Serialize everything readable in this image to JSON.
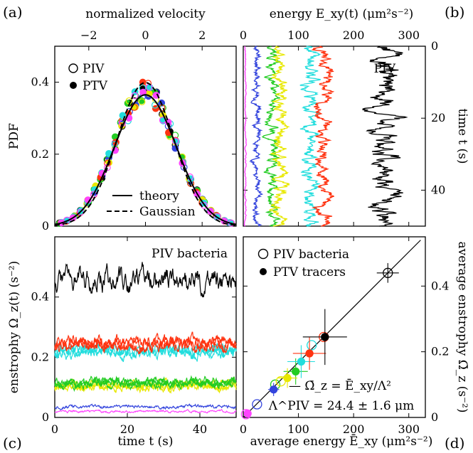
{
  "panels": {
    "a": "(a)",
    "b": "(b)",
    "c": "(c)",
    "d": "(d)"
  },
  "chart_data": [
    {
      "id": "a",
      "type": "scatter",
      "xlabel": "normalized velocity",
      "ylabel": "PDF",
      "xlim": [
        -3.2,
        3.2
      ],
      "ylim": [
        0,
        0.5
      ],
      "xticks": [
        -2,
        0,
        2
      ],
      "yticks": [
        0,
        0.2,
        0.4
      ],
      "legend": [
        {
          "label": "PIV",
          "marker": "open-circle"
        },
        {
          "label": "PTV",
          "marker": "filled-circle"
        },
        {
          "label": "theory",
          "line": "solid"
        },
        {
          "label": "Gaussian",
          "line": "dashed"
        }
      ],
      "colors": [
        "#000000",
        "#3344dd",
        "#22cc22",
        "#e8e800",
        "#ff3311",
        "#22dddd",
        "#ff44ff"
      ],
      "series": [
        {
          "name": "theory",
          "curve": "pdf",
          "sigma": 1.09,
          "peak": 0.365
        },
        {
          "name": "Gaussian",
          "curve": "gauss",
          "sigma": 1.0,
          "peak": 0.399
        }
      ]
    },
    {
      "id": "b",
      "type": "line",
      "xlabel": "energy  E_xy(t)  (μm²s⁻²)",
      "ylabel": "time  t  (s)",
      "annotation": "PIV",
      "xlim": [
        0,
        330
      ],
      "ylim": [
        0,
        50
      ],
      "xticks": [
        0,
        100,
        200,
        300
      ],
      "yticks": [
        0,
        20,
        40
      ],
      "series": [
        {
          "color": "#ff44ff",
          "mean": 4,
          "amp": 1.2
        },
        {
          "color": "#3344dd",
          "mean": 25,
          "amp": 6
        },
        {
          "color": "#22cc22",
          "mean": 55,
          "amp": 10
        },
        {
          "color": "#e8e800",
          "mean": 68,
          "amp": 12
        },
        {
          "color": "#22dddd",
          "mean": 122,
          "amp": 14
        },
        {
          "color": "#ff3311",
          "mean": 146,
          "amp": 14
        },
        {
          "color": "#000000",
          "mean": 262,
          "amp": 25
        }
      ]
    },
    {
      "id": "c",
      "type": "line",
      "xlabel": "time  t  (s)",
      "ylabel": "enstrophy  Ω_z(t)  (s⁻²)",
      "annotation": "PIV bacteria",
      "xlim": [
        0,
        50
      ],
      "ylim": [
        0,
        0.6
      ],
      "xticks": [
        0,
        20,
        40
      ],
      "yticks": [
        0,
        0.2,
        0.4
      ],
      "series": [
        {
          "color": "#ff44ff",
          "mean": 0.02,
          "amp": 0.004
        },
        {
          "color": "#3344dd",
          "mean": 0.035,
          "amp": 0.006
        },
        {
          "color": "#e8e800",
          "mean": 0.105,
          "amp": 0.015
        },
        {
          "color": "#22cc22",
          "mean": 0.115,
          "amp": 0.015
        },
        {
          "color": "#22dddd",
          "mean": 0.22,
          "amp": 0.02
        },
        {
          "color": "#ff3311",
          "mean": 0.245,
          "amp": 0.022
        },
        {
          "color": "#000000",
          "mean": 0.455,
          "amp": 0.04
        }
      ]
    },
    {
      "id": "d",
      "type": "scatter",
      "xlabel": "average energy  Ē_xy  (μm²s⁻²)",
      "ylabel": "average enstrophy  Ω̄_z  (s⁻²)",
      "xlim": [
        0,
        330
      ],
      "ylim": [
        0,
        0.55
      ],
      "xticks": [
        0,
        100,
        200,
        300
      ],
      "yticks": [
        0,
        0.2,
        0.4
      ],
      "legend": [
        {
          "label": "PIV bacteria",
          "marker": "open-circle"
        },
        {
          "label": "PTV tracers",
          "marker": "filled-circle"
        }
      ],
      "fit_label": "— Ω̄_z = Ē_xy/Λ²",
      "lambda_label": "Λ^PIV = 24.4 ± 1.6 μm",
      "fit_slope": 0.00168,
      "piv_points": [
        {
          "x": 5,
          "y": 0.01,
          "color": "#ff44ff"
        },
        {
          "x": 25,
          "y": 0.04,
          "color": "#3344dd"
        },
        {
          "x": 58,
          "y": 0.1,
          "color": "#22cc22"
        },
        {
          "x": 68,
          "y": 0.11,
          "color": "#e8e800"
        },
        {
          "x": 124,
          "y": 0.22,
          "color": "#22dddd"
        },
        {
          "x": 146,
          "y": 0.245,
          "color": "#ff3311"
        },
        {
          "x": 262,
          "y": 0.44,
          "color": "#000000",
          "xerr": 20,
          "yerr": 0.03
        }
      ],
      "ptv_points": [
        {
          "x": 8,
          "y": 0.012,
          "color": "#ff44ff"
        },
        {
          "x": 55,
          "y": 0.085,
          "color": "#3344dd",
          "xerr": 10,
          "yerr": 0.02
        },
        {
          "x": 95,
          "y": 0.14,
          "color": "#22cc22",
          "xerr": 22,
          "yerr": 0.04
        },
        {
          "x": 80,
          "y": 0.12,
          "color": "#e8e800",
          "xerr": 18,
          "yerr": 0.03
        },
        {
          "x": 105,
          "y": 0.17,
          "color": "#22dddd",
          "xerr": 25,
          "yerr": 0.05
        },
        {
          "x": 120,
          "y": 0.195,
          "color": "#ff3311",
          "xerr": 30,
          "yerr": 0.05
        },
        {
          "x": 148,
          "y": 0.245,
          "color": "#000000",
          "xerr": 40,
          "yerr": 0.085
        }
      ]
    }
  ]
}
